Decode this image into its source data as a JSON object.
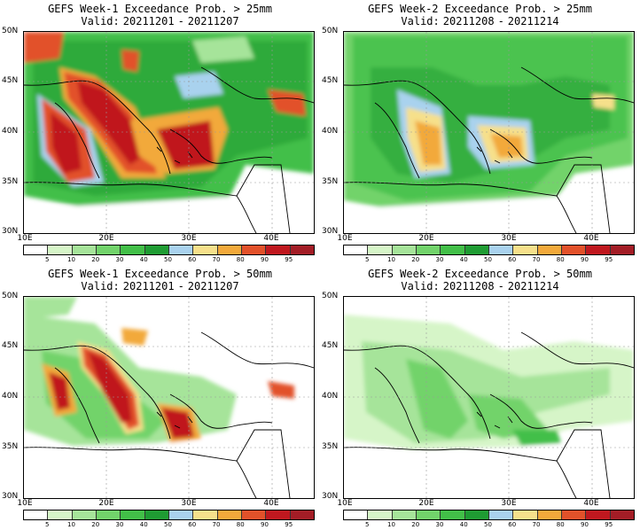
{
  "panels": [
    {
      "title": "GEFS Week-1 Exceedance Prob. > 25mm",
      "valid_label": "Valid:",
      "start": "20211201",
      "end": "20211207"
    },
    {
      "title": "GEFS Week-2 Exceedance Prob. > 25mm",
      "valid_label": "Valid:",
      "start": "20211208",
      "end": "20211214"
    },
    {
      "title": "GEFS Week-1 Exceedance Prob. > 50mm",
      "valid_label": "Valid:",
      "start": "20211201",
      "end": "20211207"
    },
    {
      "title": "GEFS Week-2 Exceedance Prob. > 50mm",
      "valid_label": "Valid:",
      "start": "20211208",
      "end": "20211214"
    }
  ],
  "axes": {
    "lat_labels": [
      "50N",
      "45N",
      "40N",
      "35N",
      "30N"
    ],
    "lon_labels": [
      "10E",
      "20E",
      "30E",
      "40E"
    ]
  },
  "colorbar": {
    "labels": [
      "5",
      "10",
      "20",
      "30",
      "40",
      "50",
      "60",
      "70",
      "80",
      "90",
      "95"
    ],
    "colors": [
      "#ffffff",
      "#d6f5c8",
      "#a6e49a",
      "#72d36b",
      "#42bf48",
      "#1f9c33",
      "#a9d2ee",
      "#f6e08b",
      "#f2a93b",
      "#e2512a",
      "#c0181f",
      "#a31d26"
    ]
  }
}
